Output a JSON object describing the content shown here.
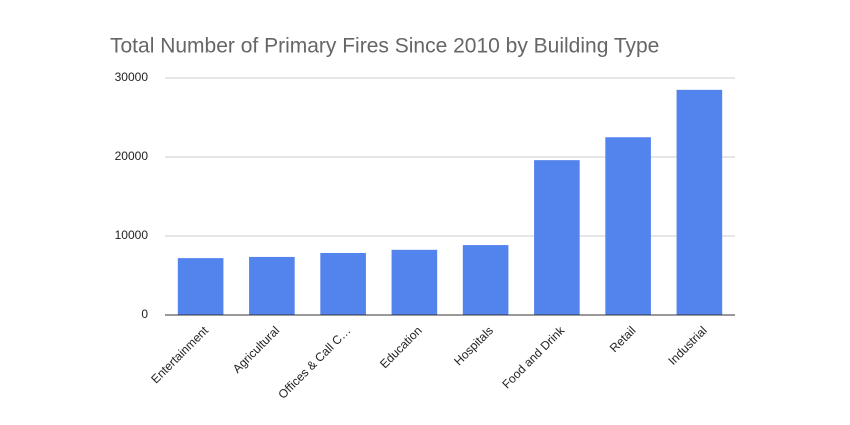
{
  "chart_data": {
    "type": "bar",
    "title": "Total Number of Primary Fires Since 2010 by Building Type",
    "categories": [
      "Entertainment",
      "Agricultural",
      "Offices & Call C…",
      "Education",
      "Hospitals",
      "Food and Drink",
      "Retail",
      "Industrial"
    ],
    "values": [
      7200,
      7350,
      7850,
      8250,
      8850,
      19600,
      22500,
      28500
    ],
    "color": "#5383ec",
    "ylim": [
      0,
      30000
    ],
    "yticks": [
      0,
      10000,
      20000,
      30000
    ],
    "grid": true
  }
}
